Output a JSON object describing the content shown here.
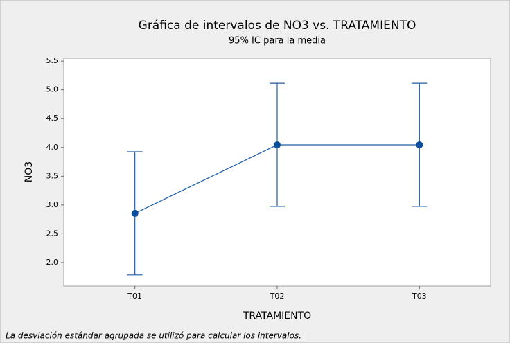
{
  "chart_data": {
    "type": "interval",
    "title": "Gráfica de intervalos de NO3 vs. TRATAMIENTO",
    "subtitle": "95% IC para la media",
    "x_label": "TRATAMIENTO",
    "y_label": "NO3",
    "footnote": "La desviación estándar agrupada se utilizó para calcular los intervalos.",
    "categories": [
      "T01",
      "T02",
      "T03"
    ],
    "values": [
      2.855,
      4.045,
      4.045
    ],
    "errors": [
      1.07,
      1.07,
      1.07
    ],
    "color": "#1f5fa8",
    "ylim": [
      1.59,
      5.55
    ],
    "yticks": [
      {
        "value": 2,
        "label": "2.0"
      },
      2.5,
      {
        "value": 3,
        "label": "3.0"
      },
      3.5,
      {
        "value": 4,
        "label": "4.0"
      },
      4.5,
      {
        "value": 5,
        "label": "5.0"
      },
      5.5
    ]
  }
}
